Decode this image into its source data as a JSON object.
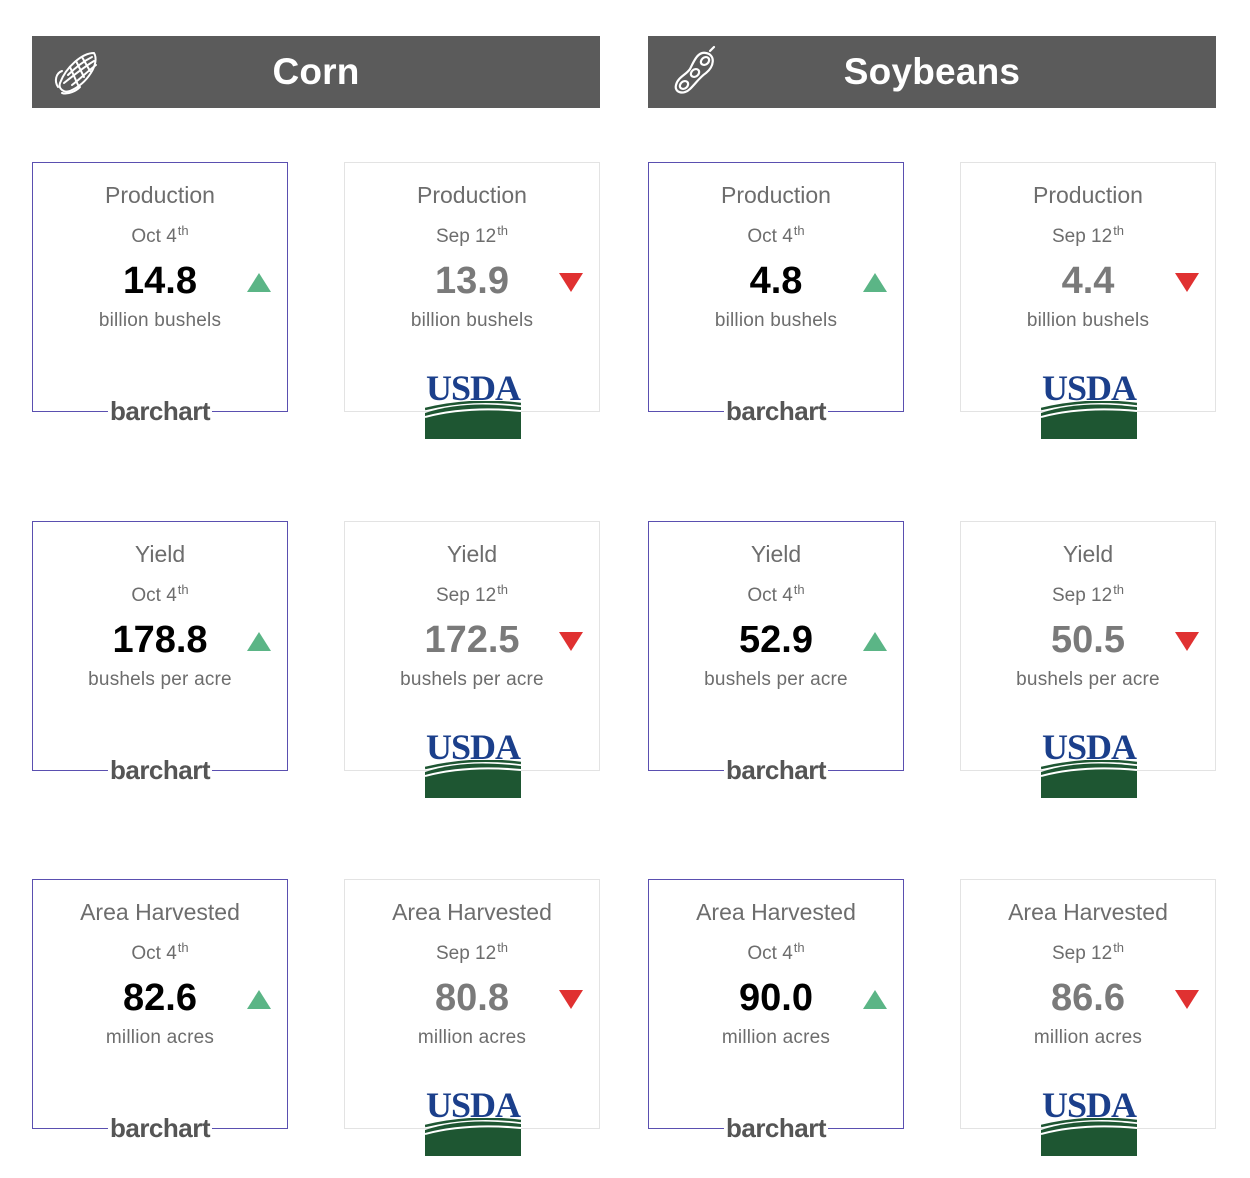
{
  "panels": [
    {
      "title": "Corn",
      "icon": "corn-icon",
      "rows": [
        {
          "barchart": {
            "label": "Production",
            "date": "Oct 4",
            "suffix": "th",
            "value": "14.8",
            "unit": "billion bushels",
            "trend": "up",
            "logo": "barchart"
          },
          "usda": {
            "label": "Production",
            "date": "Sep 12",
            "suffix": "th",
            "value": "13.9",
            "unit": "billion bushels",
            "trend": "down",
            "logo": "USDA"
          }
        },
        {
          "barchart": {
            "label": "Yield",
            "date": "Oct 4",
            "suffix": "th",
            "value": "178.8",
            "unit": "bushels per acre",
            "trend": "up",
            "logo": "barchart"
          },
          "usda": {
            "label": "Yield",
            "date": "Sep 12",
            "suffix": "th",
            "value": "172.5",
            "unit": "bushels per acre",
            "trend": "down",
            "logo": "USDA"
          }
        },
        {
          "barchart": {
            "label": "Area Harvested",
            "date": "Oct 4",
            "suffix": "th",
            "value": "82.6",
            "unit": "million acres",
            "trend": "up",
            "logo": "barchart"
          },
          "usda": {
            "label": "Area Harvested",
            "date": "Sep 12",
            "suffix": "th",
            "value": "80.8",
            "unit": "million acres",
            "trend": "down",
            "logo": "USDA"
          }
        }
      ]
    },
    {
      "title": "Soybeans",
      "icon": "soybean-icon",
      "rows": [
        {
          "barchart": {
            "label": "Production",
            "date": "Oct 4",
            "suffix": "th",
            "value": "4.8",
            "unit": "billion bushels",
            "trend": "up",
            "logo": "barchart"
          },
          "usda": {
            "label": "Production",
            "date": "Sep 12",
            "suffix": "th",
            "value": "4.4",
            "unit": "billion bushels",
            "trend": "down",
            "logo": "USDA"
          }
        },
        {
          "barchart": {
            "label": "Yield",
            "date": "Oct 4",
            "suffix": "th",
            "value": "52.9",
            "unit": "bushels per acre",
            "trend": "up",
            "logo": "barchart"
          },
          "usda": {
            "label": "Yield",
            "date": "Sep 12",
            "suffix": "th",
            "value": "50.5",
            "unit": "bushels per acre",
            "trend": "down",
            "logo": "USDA"
          }
        },
        {
          "barchart": {
            "label": "Area Harvested",
            "date": "Oct 4",
            "suffix": "th",
            "value": "90.0",
            "unit": "million acres",
            "trend": "up",
            "logo": "barchart"
          },
          "usda": {
            "label": "Area Harvested",
            "date": "Sep 12",
            "suffix": "th",
            "value": "86.6",
            "unit": "million acres",
            "trend": "down",
            "logo": "USDA"
          }
        }
      ]
    }
  ],
  "colors": {
    "header_bg": "#5b5b5b",
    "up": "#5bb586",
    "down": "#e03131",
    "barchart_border": "#5a4fb0",
    "usda_blue": "#1b3f8b",
    "usda_green": "#1e5632"
  }
}
